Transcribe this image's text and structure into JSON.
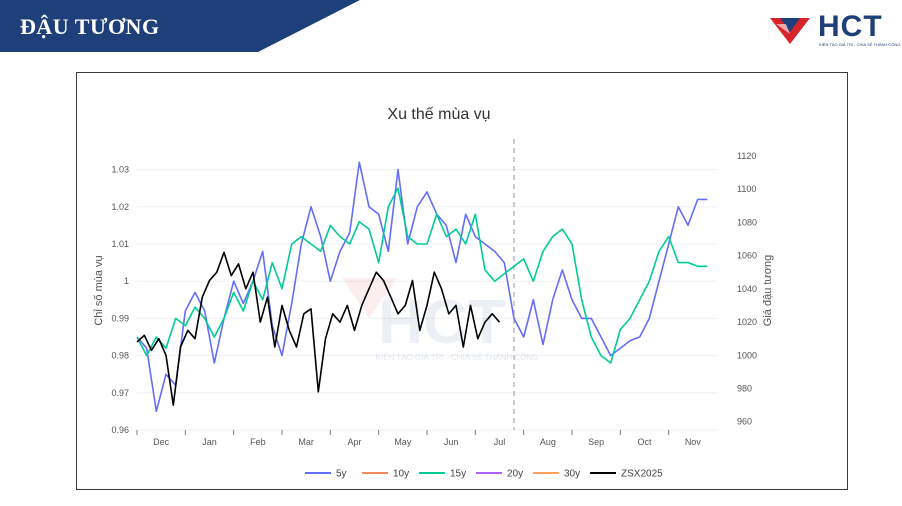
{
  "header": {
    "title": "ĐẬU TƯƠNG"
  },
  "logo": {
    "text": "HCT",
    "tagline": "KIẾN TẠO GIÁ TRỊ - CHIA SẺ THÀNH CÔNG"
  },
  "watermark": {
    "text": "HCT",
    "tagline": "KIẾN TẠO GIÁ TRỊ - CHIA SẺ THÀNH CÔNG"
  },
  "colors": {
    "banner": "#1f3f7a",
    "logo_red": "#d8232a",
    "logo_blue": "#1f3f7a"
  },
  "chart_data": {
    "type": "line",
    "title": "Xu thế mùa vụ",
    "ylabel": "Chỉ số mùa vụ",
    "y2label": "Giá đậu tương",
    "ylim": [
      0.96,
      1.035
    ],
    "y2lim": [
      955,
      1123
    ],
    "yticks": [
      "0.96",
      "0.97",
      "0.98",
      "0.99",
      "1",
      "1.01",
      "1.02",
      "1.03"
    ],
    "y2ticks": [
      "960",
      "980",
      "1000",
      "1020",
      "1040",
      "1060",
      "1080",
      "1100",
      "1120"
    ],
    "xticks": [
      "Dec",
      "Jan",
      "Feb",
      "Mar",
      "Apr",
      "May",
      "Jun",
      "Jul",
      "Aug",
      "Sep",
      "Oct",
      "Nov"
    ],
    "x_range": [
      0,
      12
    ],
    "divider_x": 7.8,
    "grid": true,
    "legend_position": "bottom",
    "series": [
      {
        "name": "5y",
        "color": "#636efa",
        "axis": "left",
        "x": [
          0,
          0.2,
          0.4,
          0.6,
          0.8,
          1.0,
          1.2,
          1.4,
          1.6,
          1.8,
          2.0,
          2.2,
          2.4,
          2.6,
          2.8,
          3.0,
          3.2,
          3.4,
          3.6,
          3.8,
          4.0,
          4.2,
          4.4,
          4.6,
          4.8,
          5.0,
          5.2,
          5.4,
          5.6,
          5.8,
          6.0,
          6.2,
          6.4,
          6.6,
          6.8,
          7.0,
          7.2,
          7.4,
          7.6,
          7.8,
          8.0,
          8.2,
          8.4,
          8.6,
          8.8,
          9.0,
          9.2,
          9.4,
          9.6,
          9.8,
          10.0,
          10.2,
          10.4,
          10.6,
          10.8,
          11.0,
          11.2,
          11.4,
          11.6,
          11.8
        ],
        "y": [
          0.985,
          0.982,
          0.965,
          0.975,
          0.972,
          0.992,
          0.997,
          0.992,
          0.978,
          0.99,
          1.0,
          0.994,
          1.0,
          1.008,
          0.988,
          0.98,
          0.994,
          1.01,
          1.02,
          1.012,
          1.0,
          1.008,
          1.013,
          1.032,
          1.02,
          1.018,
          1.008,
          1.03,
          1.01,
          1.02,
          1.024,
          1.018,
          1.015,
          1.005,
          1.018,
          1.012,
          1.01,
          1.008,
          1.005,
          0.99,
          0.985,
          0.995,
          0.983,
          0.995,
          1.003,
          0.995,
          0.99,
          0.99,
          0.985,
          0.98,
          0.982,
          0.984,
          0.985,
          0.99,
          1.0,
          1.01,
          1.02,
          1.015,
          1.022,
          1.022
        ]
      },
      {
        "name": "10y",
        "color": "#ef8a5c",
        "axis": "left",
        "x": [],
        "y": []
      },
      {
        "name": "15y",
        "color": "#00cc96",
        "axis": "left",
        "x": [
          0,
          0.2,
          0.4,
          0.6,
          0.8,
          1.0,
          1.2,
          1.4,
          1.6,
          1.8,
          2.0,
          2.2,
          2.4,
          2.6,
          2.8,
          3.0,
          3.2,
          3.4,
          3.6,
          3.8,
          4.0,
          4.2,
          4.4,
          4.6,
          4.8,
          5.0,
          5.2,
          5.4,
          5.6,
          5.8,
          6.0,
          6.2,
          6.4,
          6.6,
          6.8,
          7.0,
          7.2,
          7.4,
          7.6,
          7.8,
          8.0,
          8.2,
          8.4,
          8.6,
          8.8,
          9.0,
          9.2,
          9.4,
          9.6,
          9.8,
          10.0,
          10.2,
          10.4,
          10.6,
          10.8,
          11.0,
          11.2,
          11.4,
          11.6,
          11.8
        ],
        "y": [
          0.985,
          0.98,
          0.985,
          0.982,
          0.99,
          0.988,
          0.993,
          0.99,
          0.985,
          0.99,
          0.997,
          0.992,
          1.0,
          0.995,
          1.005,
          0.998,
          1.01,
          1.012,
          1.01,
          1.008,
          1.015,
          1.012,
          1.01,
          1.016,
          1.014,
          1.005,
          1.02,
          1.025,
          1.012,
          1.01,
          1.01,
          1.018,
          1.012,
          1.014,
          1.01,
          1.018,
          1.003,
          1.0,
          1.002,
          1.004,
          1.006,
          1.0,
          1.008,
          1.012,
          1.014,
          1.01,
          0.995,
          0.985,
          0.98,
          0.978,
          0.987,
          0.99,
          0.995,
          1.0,
          1.008,
          1.012,
          1.005,
          1.005,
          1.004,
          1.004
        ]
      },
      {
        "name": "20y",
        "color": "#ab63fa",
        "axis": "left",
        "x": [],
        "y": []
      },
      {
        "name": "30y",
        "color": "#ffa15a",
        "axis": "left",
        "x": [],
        "y": []
      },
      {
        "name": "ZSX2025",
        "color": "#000000",
        "axis": "right",
        "x": [
          0,
          0.15,
          0.3,
          0.45,
          0.6,
          0.75,
          0.9,
          1.05,
          1.2,
          1.35,
          1.5,
          1.65,
          1.8,
          1.95,
          2.1,
          2.25,
          2.4,
          2.55,
          2.7,
          2.85,
          3.0,
          3.15,
          3.3,
          3.45,
          3.6,
          3.75,
          3.9,
          4.05,
          4.2,
          4.35,
          4.5,
          4.65,
          4.8,
          4.95,
          5.1,
          5.25,
          5.4,
          5.55,
          5.7,
          5.85,
          6.0,
          6.15,
          6.3,
          6.45,
          6.6,
          6.75,
          6.9,
          7.05,
          7.2,
          7.35,
          7.5
        ],
        "y": [
          1008,
          1012,
          1003,
          1010,
          1000,
          970,
          1005,
          1015,
          1010,
          1035,
          1045,
          1050,
          1062,
          1048,
          1055,
          1040,
          1050,
          1020,
          1035,
          1005,
          1030,
          1015,
          1005,
          1025,
          1028,
          978,
          1010,
          1025,
          1020,
          1030,
          1015,
          1030,
          1040,
          1050,
          1045,
          1035,
          1025,
          1030,
          1045,
          1015,
          1030,
          1050,
          1040,
          1025,
          1030,
          1005,
          1030,
          1010,
          1020,
          1025,
          1020
        ]
      }
    ]
  }
}
